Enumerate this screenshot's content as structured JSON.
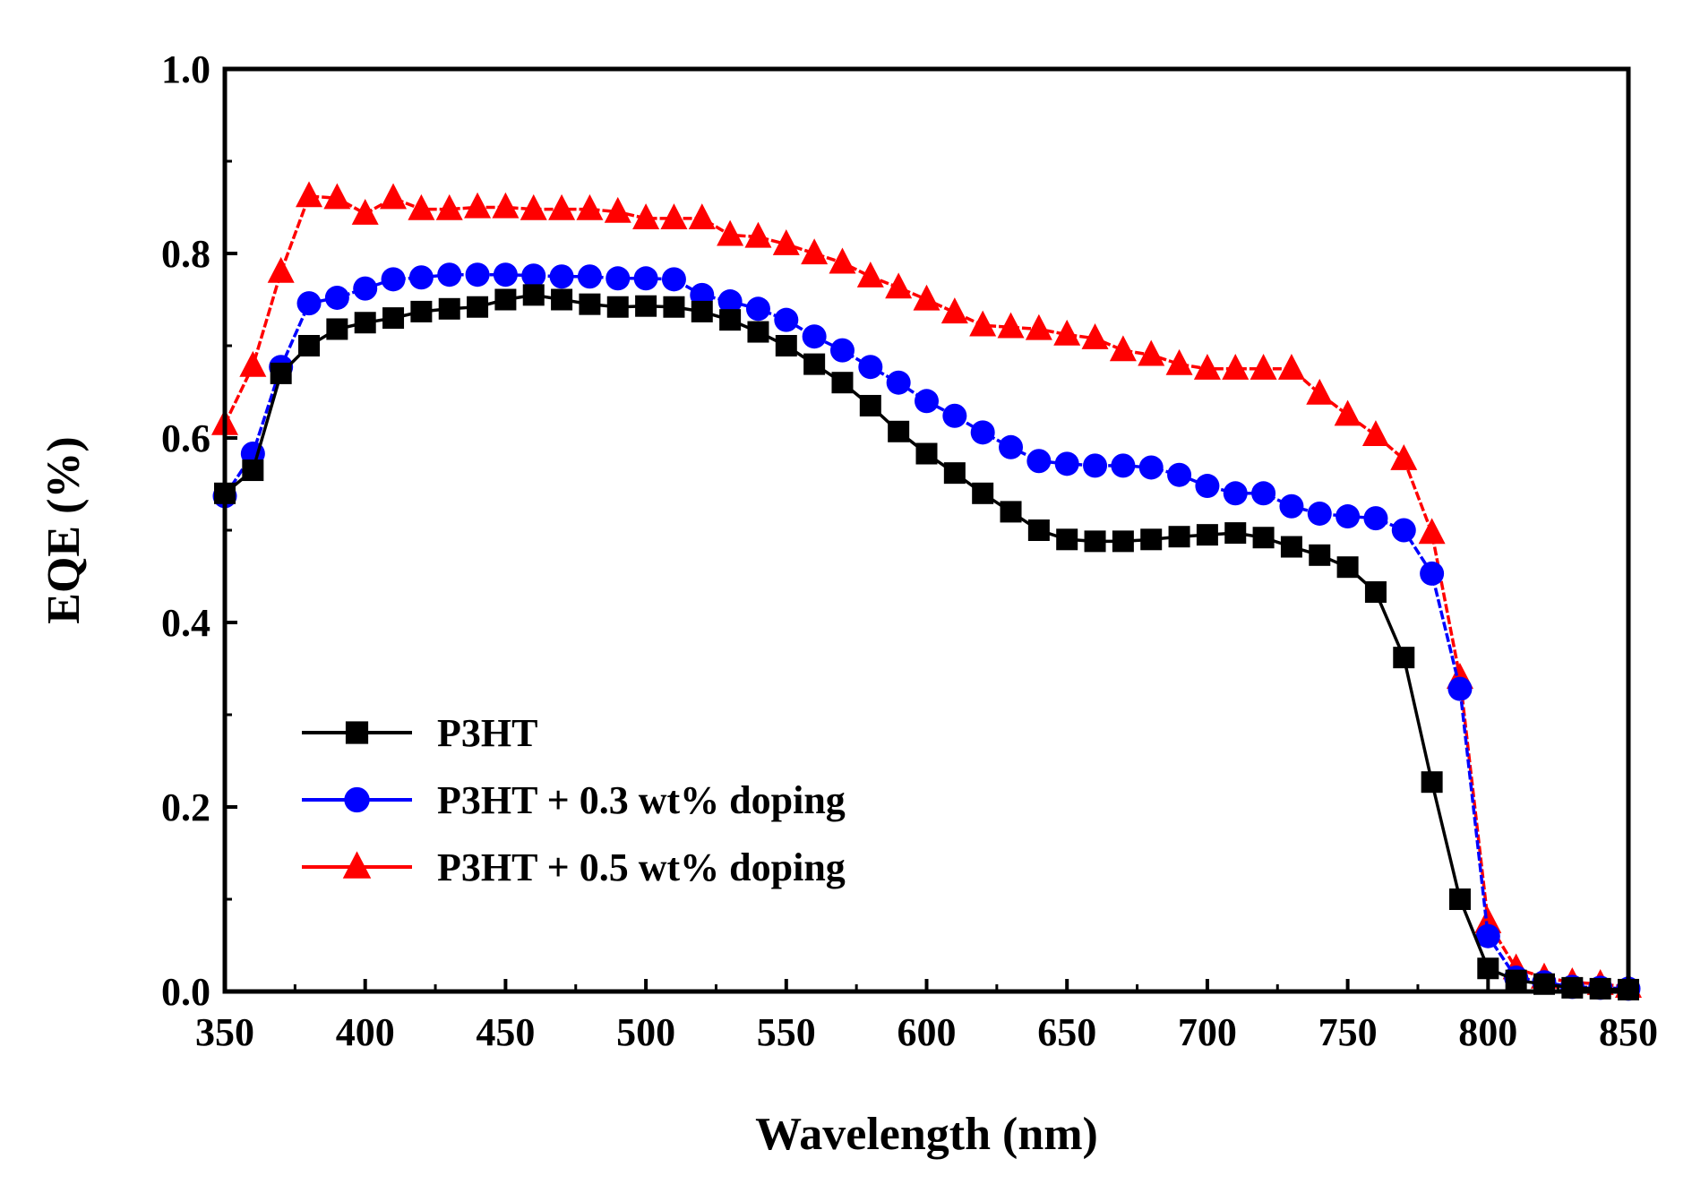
{
  "chart_data": {
    "type": "line",
    "title": "",
    "xlabel": "Wavelength (nm)",
    "ylabel": "EQE (%)",
    "xlim": [
      350,
      850
    ],
    "ylim": [
      0.0,
      1.0
    ],
    "xticks": [
      350,
      400,
      450,
      500,
      550,
      600,
      650,
      700,
      750,
      800,
      850
    ],
    "yticks": [
      0.0,
      0.2,
      0.4,
      0.6,
      0.8,
      1.0
    ],
    "xtick_labels": [
      "350",
      "400",
      "450",
      "500",
      "550",
      "600",
      "650",
      "700",
      "750",
      "800",
      "850"
    ],
    "ytick_labels": [
      "0.0",
      "0.2",
      "0.4",
      "0.6",
      "0.8",
      "1.0"
    ],
    "grid": false,
    "legend_position": "bottom-left",
    "series": [
      {
        "name": "P3HT",
        "color": "#000000",
        "marker": "square",
        "x": [
          350,
          360,
          370,
          380,
          390,
          400,
          410,
          420,
          430,
          440,
          450,
          460,
          470,
          480,
          490,
          500,
          510,
          520,
          530,
          540,
          550,
          560,
          570,
          580,
          590,
          600,
          610,
          620,
          630,
          640,
          650,
          660,
          670,
          680,
          690,
          700,
          710,
          720,
          730,
          740,
          750,
          760,
          770,
          780,
          790,
          800,
          810,
          820,
          830,
          840,
          850
        ],
        "y": [
          0.54,
          0.565,
          0.67,
          0.7,
          0.718,
          0.725,
          0.73,
          0.737,
          0.74,
          0.742,
          0.75,
          0.755,
          0.75,
          0.745,
          0.742,
          0.743,
          0.742,
          0.737,
          0.728,
          0.715,
          0.7,
          0.68,
          0.66,
          0.635,
          0.607,
          0.583,
          0.562,
          0.54,
          0.52,
          0.5,
          0.49,
          0.488,
          0.488,
          0.49,
          0.493,
          0.495,
          0.497,
          0.492,
          0.482,
          0.473,
          0.46,
          0.433,
          0.362,
          0.227,
          0.1,
          0.025,
          0.012,
          0.008,
          0.004,
          0.003,
          0.002
        ]
      },
      {
        "name": "P3HT + 0.3 wt% doping",
        "color": "#0000ff",
        "marker": "circle",
        "x": [
          350,
          360,
          370,
          380,
          390,
          400,
          410,
          420,
          430,
          440,
          450,
          460,
          470,
          480,
          490,
          500,
          510,
          520,
          530,
          540,
          550,
          560,
          570,
          580,
          590,
          600,
          610,
          620,
          630,
          640,
          650,
          660,
          670,
          680,
          690,
          700,
          710,
          720,
          730,
          740,
          750,
          760,
          770,
          780,
          790,
          800,
          810,
          820,
          830,
          840,
          850
        ],
        "y": [
          0.537,
          0.583,
          0.677,
          0.746,
          0.752,
          0.762,
          0.772,
          0.774,
          0.777,
          0.777,
          0.777,
          0.776,
          0.775,
          0.775,
          0.773,
          0.773,
          0.772,
          0.755,
          0.748,
          0.74,
          0.728,
          0.71,
          0.695,
          0.677,
          0.66,
          0.64,
          0.624,
          0.606,
          0.59,
          0.575,
          0.572,
          0.57,
          0.57,
          0.568,
          0.56,
          0.548,
          0.54,
          0.54,
          0.526,
          0.518,
          0.515,
          0.513,
          0.5,
          0.453,
          0.328,
          0.06,
          0.015,
          0.01,
          0.005,
          0.004,
          0.003
        ]
      },
      {
        "name": "P3HT + 0.5 wt% doping",
        "color": "#ff0000",
        "marker": "triangle",
        "x": [
          350,
          360,
          370,
          380,
          390,
          400,
          410,
          420,
          430,
          440,
          450,
          460,
          470,
          480,
          490,
          500,
          510,
          520,
          530,
          540,
          550,
          560,
          570,
          580,
          590,
          600,
          610,
          620,
          630,
          640,
          650,
          660,
          670,
          680,
          690,
          700,
          710,
          720,
          730,
          740,
          750,
          760,
          770,
          780,
          790,
          800,
          810,
          820,
          830,
          840,
          850
        ],
        "y": [
          0.615,
          0.678,
          0.78,
          0.862,
          0.86,
          0.843,
          0.86,
          0.848,
          0.848,
          0.85,
          0.85,
          0.848,
          0.848,
          0.848,
          0.845,
          0.838,
          0.838,
          0.838,
          0.82,
          0.818,
          0.81,
          0.8,
          0.79,
          0.775,
          0.763,
          0.75,
          0.736,
          0.722,
          0.72,
          0.718,
          0.712,
          0.708,
          0.695,
          0.69,
          0.68,
          0.675,
          0.675,
          0.675,
          0.675,
          0.648,
          0.625,
          0.603,
          0.577,
          0.497,
          0.34,
          0.075,
          0.025,
          0.015,
          0.01,
          0.008,
          0.005
        ]
      }
    ]
  }
}
